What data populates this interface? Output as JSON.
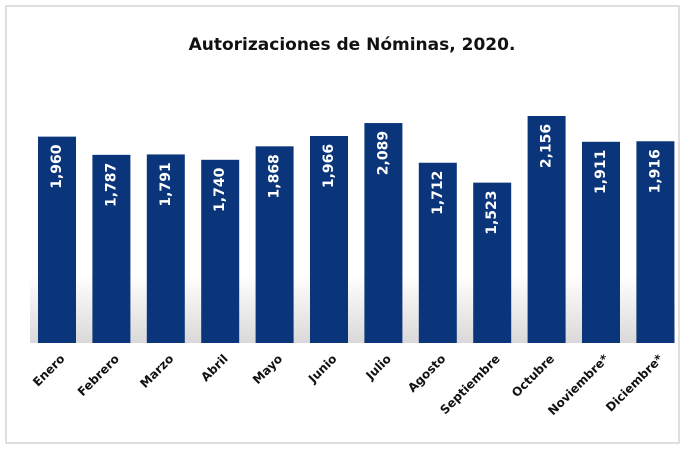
{
  "chart_data": {
    "type": "bar",
    "title": "Autorizaciones de Nóminas, 2020.",
    "categories": [
      "Enero",
      "Febrero",
      "Marzo",
      "Abril",
      "Mayo",
      "Junio",
      "Julio",
      "Agosto",
      "Septiembre",
      "Octubre",
      "Noviembre*",
      "Diciembre*"
    ],
    "values": [
      1960,
      1787,
      1791,
      1740,
      1868,
      1966,
      2089,
      1712,
      1523,
      2156,
      1911,
      1916
    ],
    "value_labels": [
      "1,960",
      "1,787",
      "1,791",
      "1,740",
      "1,868",
      "1,966",
      "2,089",
      "1,712",
      "1,523",
      "2,156",
      "1,911",
      "1,916"
    ],
    "color": "#0b357a"
  }
}
